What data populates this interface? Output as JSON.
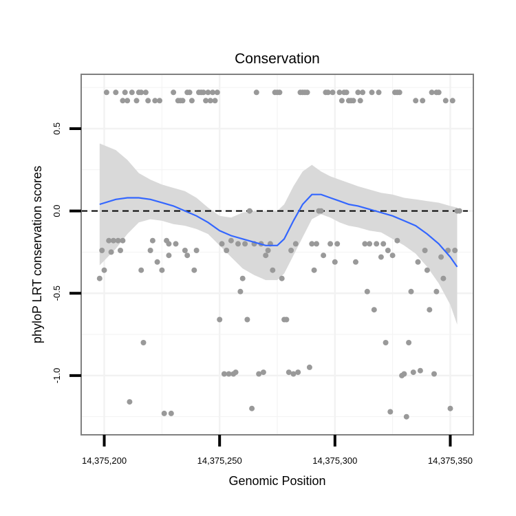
{
  "chart_data": {
    "type": "scatter",
    "title": "Conservation",
    "xlabel": "Genomic Position",
    "ylabel": "phyloP LRT conservation scores",
    "xlim": [
      14375190,
      14375360
    ],
    "ylim": [
      -1.36,
      0.83
    ],
    "x_ticks": [
      14375200,
      14375250,
      14375300,
      14375350
    ],
    "x_tick_labels": [
      "14,375,200",
      "14,375,250",
      "14,375,300",
      "14,375,350"
    ],
    "y_ticks": [
      -1.0,
      -0.5,
      0.0,
      0.5
    ],
    "y_tick_labels": [
      "-1.0",
      "-0.5",
      "0.0",
      "0.5"
    ],
    "reference_line": {
      "y": 0,
      "style": "dashed"
    },
    "colors": {
      "points": "#999999",
      "smooth": "#3366ff",
      "band": "#d9d9d9",
      "frame": "#7f7f7f",
      "grid": "#f2f2f2"
    },
    "points": [
      [
        14375198,
        -0.41
      ],
      [
        14375199,
        -0.24
      ],
      [
        14375200,
        -0.36
      ],
      [
        14375201,
        0.72
      ],
      [
        14375202,
        -0.18
      ],
      [
        14375203,
        -0.25
      ],
      [
        14375204,
        -0.18
      ],
      [
        14375205,
        0.72
      ],
      [
        14375206,
        -0.18
      ],
      [
        14375207,
        -0.24
      ],
      [
        14375208,
        0.67
      ],
      [
        14375208,
        -0.18
      ],
      [
        14375209,
        0.72
      ],
      [
        14375210,
        0.67
      ],
      [
        14375211,
        -1.16
      ],
      [
        14375212,
        0.72
      ],
      [
        14375214,
        0.67
      ],
      [
        14375215,
        0.72
      ],
      [
        14375216,
        -0.36
      ],
      [
        14375216,
        0.72
      ],
      [
        14375217,
        -0.8
      ],
      [
        14375218,
        0.72
      ],
      [
        14375219,
        0.67
      ],
      [
        14375220,
        -0.24
      ],
      [
        14375221,
        -0.18
      ],
      [
        14375222,
        0.67
      ],
      [
        14375223,
        -0.31
      ],
      [
        14375224,
        0.67
      ],
      [
        14375225,
        -0.36
      ],
      [
        14375226,
        -1.23
      ],
      [
        14375227,
        -0.18
      ],
      [
        14375228,
        -0.2
      ],
      [
        14375228,
        -0.27
      ],
      [
        14375229,
        -1.23
      ],
      [
        14375230,
        0.72
      ],
      [
        14375231,
        -0.2
      ],
      [
        14375232,
        0.67
      ],
      [
        14375233,
        0.67
      ],
      [
        14375234,
        0.67
      ],
      [
        14375235,
        -0.24
      ],
      [
        14375236,
        -0.27
      ],
      [
        14375236,
        0.72
      ],
      [
        14375237,
        0.72
      ],
      [
        14375238,
        0.67
      ],
      [
        14375239,
        -0.36
      ],
      [
        14375240,
        -0.24
      ],
      [
        14375241,
        0.72
      ],
      [
        14375242,
        0.72
      ],
      [
        14375243,
        0.72
      ],
      [
        14375244,
        0.67
      ],
      [
        14375245,
        0.72
      ],
      [
        14375246,
        0.67
      ],
      [
        14375247,
        0.72
      ],
      [
        14375248,
        0.67
      ],
      [
        14375249,
        0.72
      ],
      [
        14375250,
        -0.66
      ],
      [
        14375251,
        -0.2
      ],
      [
        14375252,
        -0.99
      ],
      [
        14375253,
        -0.24
      ],
      [
        14375254,
        -0.99
      ],
      [
        14375255,
        -0.18
      ],
      [
        14375256,
        -0.99
      ],
      [
        14375257,
        -0.98
      ],
      [
        14375258,
        -0.2
      ],
      [
        14375259,
        -0.49
      ],
      [
        14375260,
        -0.41
      ],
      [
        14375261,
        -0.2
      ],
      [
        14375262,
        -0.66
      ],
      [
        14375263,
        0.0
      ],
      [
        14375264,
        -1.2
      ],
      [
        14375265,
        -0.2
      ],
      [
        14375266,
        0.72
      ],
      [
        14375267,
        -0.99
      ],
      [
        14375268,
        -0.2
      ],
      [
        14375269,
        -0.98
      ],
      [
        14375270,
        -0.27
      ],
      [
        14375271,
        -0.24
      ],
      [
        14375272,
        -0.2
      ],
      [
        14375273,
        -0.36
      ],
      [
        14375274,
        0.72
      ],
      [
        14375275,
        0.72
      ],
      [
        14375276,
        0.72
      ],
      [
        14375277,
        -0.41
      ],
      [
        14375278,
        -0.66
      ],
      [
        14375279,
        -0.66
      ],
      [
        14375280,
        -0.98
      ],
      [
        14375281,
        -0.24
      ],
      [
        14375282,
        -0.99
      ],
      [
        14375283,
        -0.2
      ],
      [
        14375284,
        -0.98
      ],
      [
        14375285,
        0.72
      ],
      [
        14375286,
        0.72
      ],
      [
        14375287,
        0.72
      ],
      [
        14375288,
        0.72
      ],
      [
        14375289,
        -0.95
      ],
      [
        14375290,
        -0.2
      ],
      [
        14375291,
        -0.36
      ],
      [
        14375292,
        -0.2
      ],
      [
        14375293,
        0.0
      ],
      [
        14375294,
        0.0
      ],
      [
        14375295,
        -0.27
      ],
      [
        14375296,
        0.72
      ],
      [
        14375297,
        0.72
      ],
      [
        14375298,
        -0.2
      ],
      [
        14375299,
        0.72
      ],
      [
        14375300,
        -0.31
      ],
      [
        14375301,
        -0.2
      ],
      [
        14375302,
        0.72
      ],
      [
        14375303,
        0.67
      ],
      [
        14375304,
        0.72
      ],
      [
        14375305,
        0.72
      ],
      [
        14375306,
        0.67
      ],
      [
        14375307,
        0.67
      ],
      [
        14375308,
        0.67
      ],
      [
        14375309,
        -0.31
      ],
      [
        14375310,
        0.72
      ],
      [
        14375311,
        0.67
      ],
      [
        14375312,
        0.72
      ],
      [
        14375313,
        -0.2
      ],
      [
        14375314,
        -0.49
      ],
      [
        14375315,
        -0.2
      ],
      [
        14375316,
        0.72
      ],
      [
        14375317,
        -0.6
      ],
      [
        14375318,
        -0.2
      ],
      [
        14375319,
        0.72
      ],
      [
        14375320,
        -0.28
      ],
      [
        14375321,
        -0.2
      ],
      [
        14375322,
        -0.8
      ],
      [
        14375323,
        -0.24
      ],
      [
        14375324,
        -1.22
      ],
      [
        14375325,
        -0.27
      ],
      [
        14375326,
        0.72
      ],
      [
        14375327,
        0.72
      ],
      [
        14375327,
        -0.18
      ],
      [
        14375328,
        0.72
      ],
      [
        14375329,
        -1.0
      ],
      [
        14375330,
        -0.99
      ],
      [
        14375331,
        -1.25
      ],
      [
        14375332,
        -0.8
      ],
      [
        14375333,
        -0.49
      ],
      [
        14375334,
        -0.98
      ],
      [
        14375335,
        0.67
      ],
      [
        14375336,
        -0.31
      ],
      [
        14375337,
        -0.97
      ],
      [
        14375338,
        0.67
      ],
      [
        14375339,
        -0.24
      ],
      [
        14375340,
        -0.36
      ],
      [
        14375341,
        -0.6
      ],
      [
        14375342,
        0.72
      ],
      [
        14375343,
        -0.99
      ],
      [
        14375344,
        0.72
      ],
      [
        14375344,
        -0.49
      ],
      [
        14375345,
        0.72
      ],
      [
        14375346,
        -0.28
      ],
      [
        14375347,
        -0.41
      ],
      [
        14375348,
        0.67
      ],
      [
        14375349,
        -0.24
      ],
      [
        14375350,
        -1.2
      ],
      [
        14375351,
        0.67
      ],
      [
        14375352,
        -0.24
      ],
      [
        14375353,
        0.0
      ],
      [
        14375354,
        0.0
      ]
    ],
    "smooth_fit": {
      "x": [
        14375198,
        14375205,
        14375210,
        14375215,
        14375220,
        14375225,
        14375230,
        14375235,
        14375240,
        14375245,
        14375250,
        14375255,
        14375260,
        14375265,
        14375270,
        14375275,
        14375278,
        14375282,
        14375286,
        14375290,
        14375294,
        14375298,
        14375302,
        14375306,
        14375310,
        14375315,
        14375320,
        14375325,
        14375330,
        14375335,
        14375340,
        14375345,
        14375350,
        14375353
      ],
      "y": [
        0.04,
        0.07,
        0.08,
        0.08,
        0.07,
        0.05,
        0.03,
        0.0,
        -0.03,
        -0.07,
        -0.12,
        -0.15,
        -0.17,
        -0.19,
        -0.21,
        -0.21,
        -0.17,
        -0.06,
        0.04,
        0.1,
        0.1,
        0.08,
        0.06,
        0.04,
        0.03,
        0.01,
        -0.01,
        -0.03,
        -0.06,
        -0.09,
        -0.14,
        -0.2,
        -0.28,
        -0.34
      ],
      "lower": [
        -0.33,
        -0.23,
        -0.14,
        -0.07,
        -0.05,
        -0.06,
        -0.08,
        -0.09,
        -0.11,
        -0.14,
        -0.21,
        -0.28,
        -0.35,
        -0.39,
        -0.42,
        -0.42,
        -0.38,
        -0.27,
        -0.16,
        -0.05,
        -0.02,
        -0.04,
        -0.07,
        -0.09,
        -0.1,
        -0.12,
        -0.13,
        -0.17,
        -0.21,
        -0.26,
        -0.34,
        -0.44,
        -0.57,
        -0.69
      ],
      "upper": [
        0.41,
        0.37,
        0.31,
        0.23,
        0.19,
        0.16,
        0.14,
        0.12,
        0.08,
        0.02,
        -0.03,
        -0.04,
        -0.01,
        0.0,
        0.0,
        0.0,
        0.04,
        0.15,
        0.24,
        0.28,
        0.24,
        0.21,
        0.19,
        0.17,
        0.15,
        0.13,
        0.11,
        0.1,
        0.08,
        0.07,
        0.06,
        0.05,
        0.03,
        0.02
      ]
    }
  }
}
